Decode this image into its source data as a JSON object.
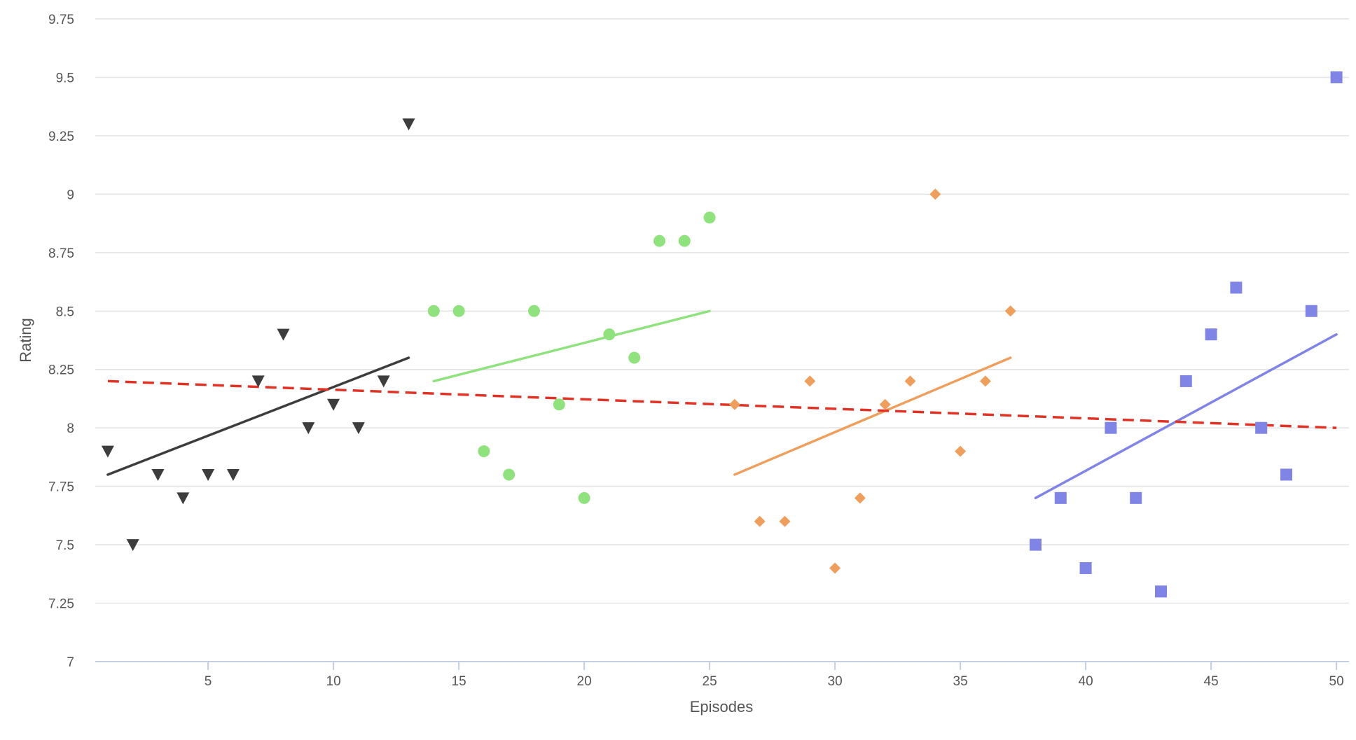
{
  "chart_data": {
    "type": "scatter",
    "title": "",
    "xlabel": "Episodes",
    "ylabel": "Rating",
    "xlim": [
      0.5,
      50.5
    ],
    "ylim": [
      7,
      9.75
    ],
    "x_ticks": [
      5,
      10,
      15,
      20,
      25,
      30,
      35,
      40,
      45,
      50
    ],
    "x_tick_labels": [
      "5",
      "10",
      "15",
      "20",
      "25",
      "30",
      "35",
      "40",
      "45",
      "50"
    ],
    "y_ticks": [
      7,
      7.25,
      7.5,
      7.75,
      8,
      8.25,
      8.5,
      8.75,
      9,
      9.25,
      9.5,
      9.75
    ],
    "y_tick_labels": [
      "7",
      "7.25",
      "7.5",
      "7.75",
      "8",
      "8.25",
      "8.5",
      "8.75",
      "9",
      "9.25",
      "9.5",
      "9.75"
    ],
    "grid": "horizontal",
    "legend": "none",
    "series": [
      {
        "marker": "triangle-down",
        "color": "#3d3d3d",
        "x": [
          1,
          2,
          3,
          4,
          5,
          6,
          7,
          8,
          9,
          10,
          11,
          12,
          13
        ],
        "y": [
          7.9,
          7.5,
          7.8,
          7.7,
          7.8,
          7.8,
          8.2,
          8.4,
          8.0,
          8.1,
          8.0,
          8.2,
          9.3
        ],
        "trend": {
          "x": [
            1,
            13
          ],
          "y": [
            7.8,
            8.3
          ]
        }
      },
      {
        "marker": "circle",
        "color": "#90e27e",
        "x": [
          14,
          15,
          16,
          17,
          18,
          19,
          20,
          21,
          22,
          23,
          24,
          25
        ],
        "y": [
          8.5,
          8.5,
          7.9,
          7.8,
          8.5,
          8.1,
          7.7,
          8.4,
          8.3,
          8.8,
          8.8,
          8.9
        ],
        "trend": {
          "x": [
            14,
            25
          ],
          "y": [
            8.2,
            8.5
          ]
        }
      },
      {
        "marker": "diamond",
        "color": "#ee9f5d",
        "x": [
          26,
          27,
          28,
          29,
          30,
          31,
          32,
          33,
          34,
          35,
          36,
          37
        ],
        "y": [
          8.1,
          7.6,
          7.6,
          8.2,
          7.4,
          7.7,
          8.1,
          8.2,
          9.0,
          7.9,
          8.2,
          8.5
        ],
        "trend": {
          "x": [
            26,
            37
          ],
          "y": [
            7.8,
            8.3
          ]
        }
      },
      {
        "marker": "square",
        "color": "#7f84e5",
        "x": [
          38,
          39,
          40,
          41,
          42,
          43,
          44,
          45,
          46,
          47,
          48,
          49,
          50
        ],
        "y": [
          7.5,
          7.7,
          7.4,
          8.0,
          7.7,
          7.3,
          8.2,
          8.4,
          8.6,
          8.0,
          7.8,
          8.5,
          9.5
        ],
        "trend": {
          "x": [
            38,
            50
          ],
          "y": [
            7.7,
            8.4
          ]
        }
      }
    ],
    "overall_trend": {
      "color": "#e03326",
      "style": "dashed",
      "x": [
        1,
        50
      ],
      "y": [
        8.2,
        8.0
      ]
    }
  }
}
